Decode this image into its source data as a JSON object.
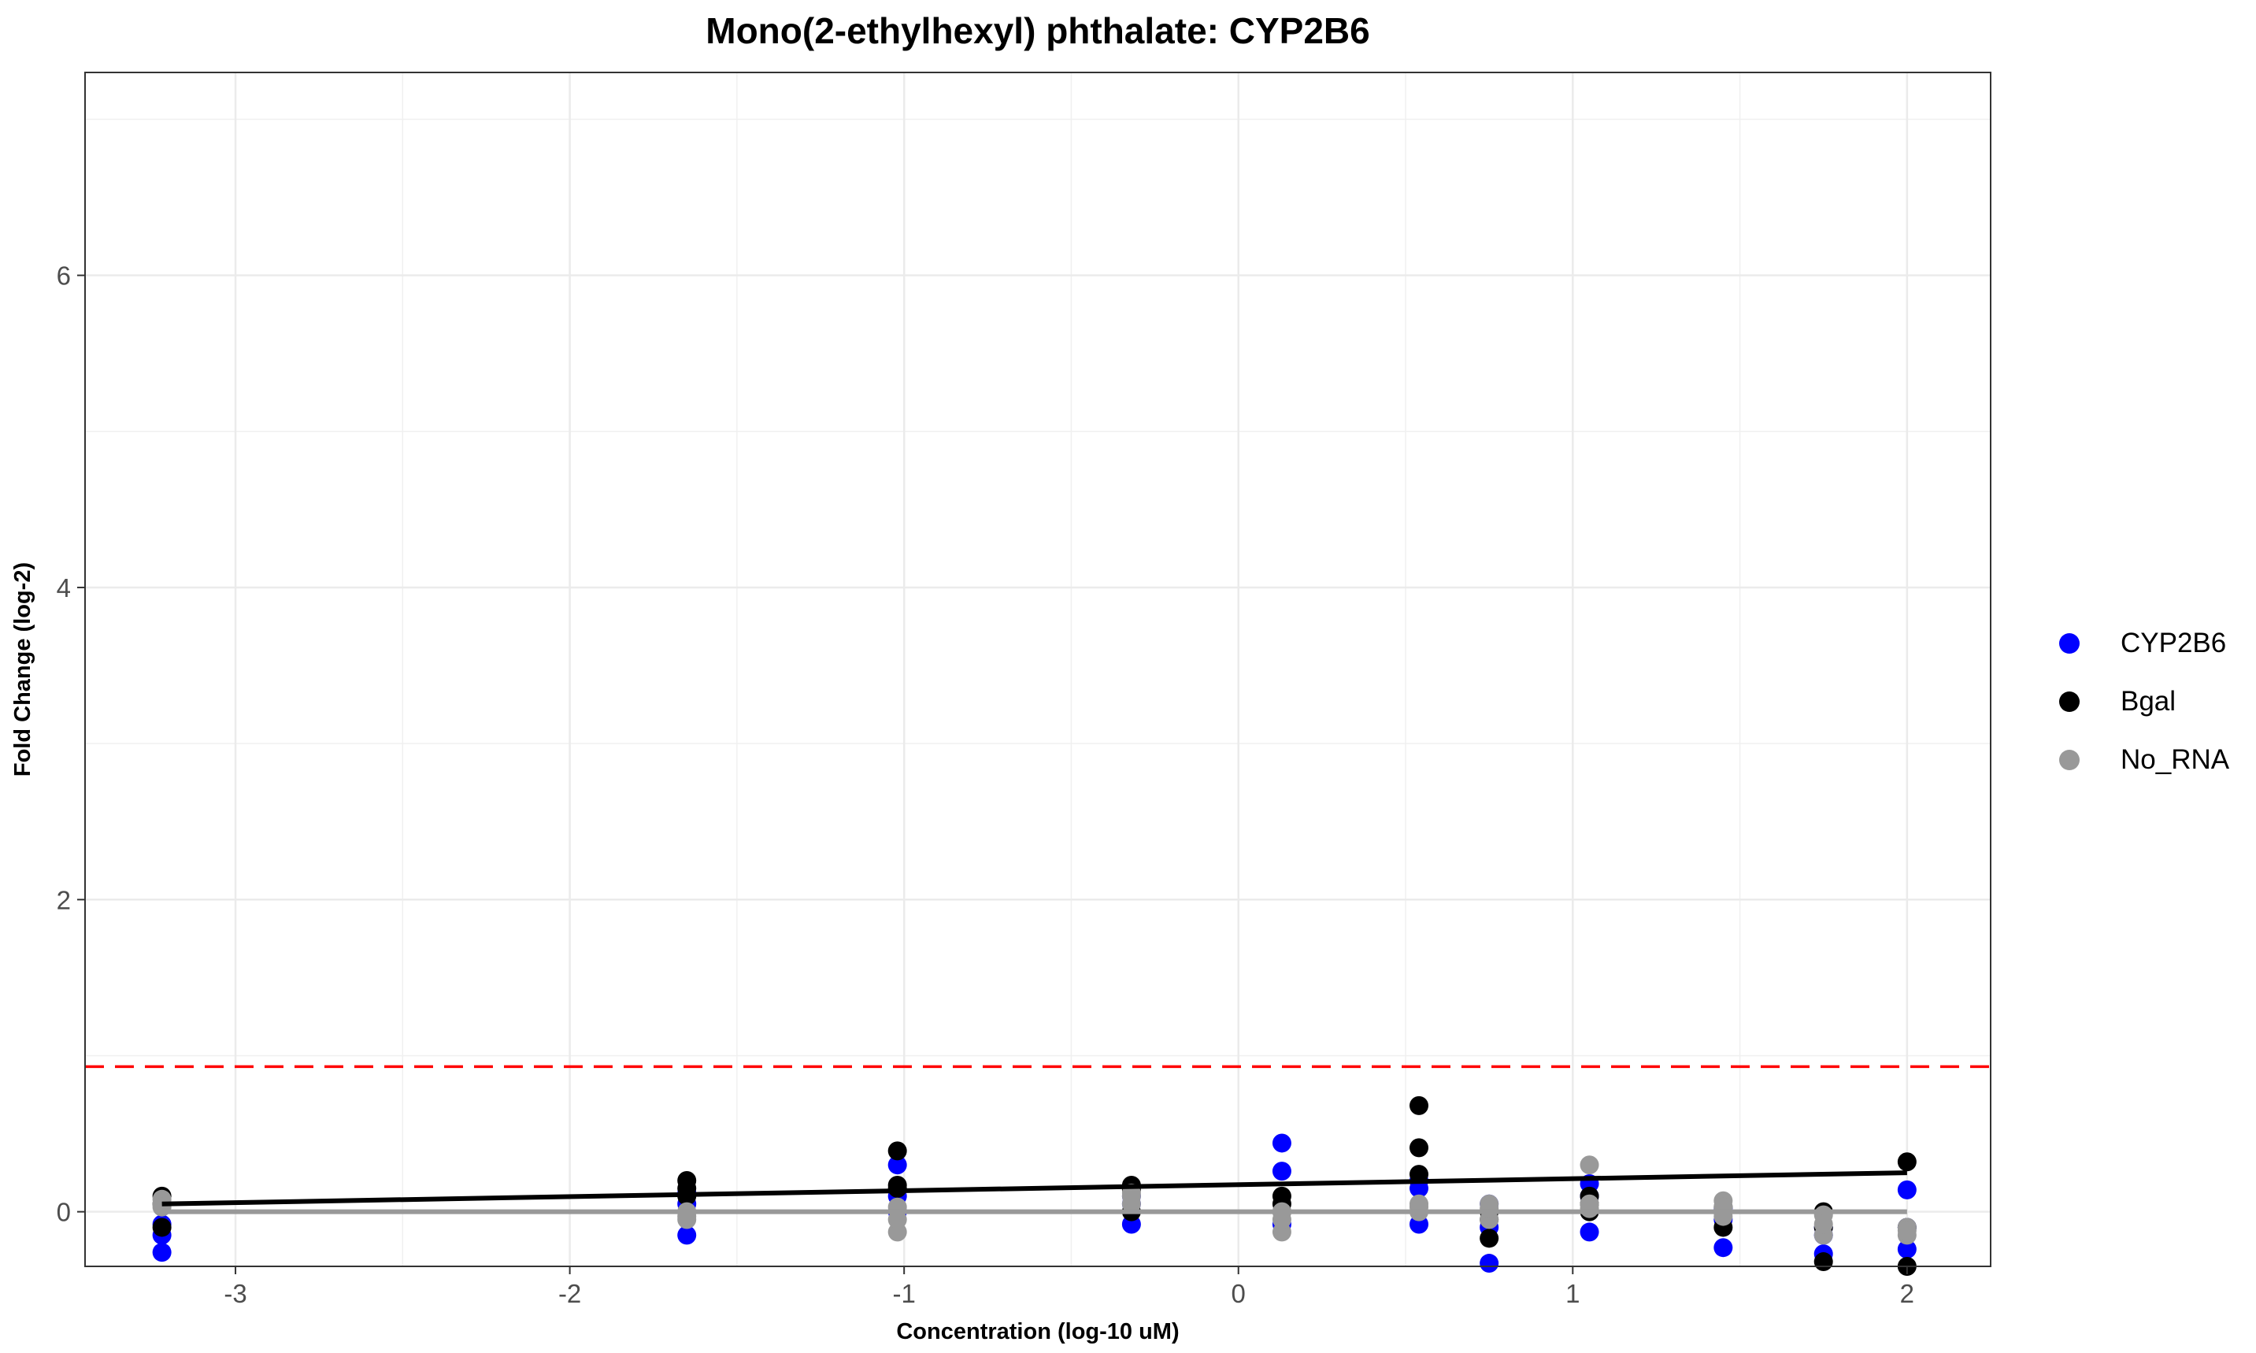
{
  "chart_data": {
    "type": "scatter",
    "title": "Mono(2-ethylhexyl) phthalate: CYP2B6",
    "xlabel": "Concentration (log-10 uM)",
    "ylabel": "Fold Change (log-2)",
    "xlim": [
      -3.45,
      2.25
    ],
    "ylim": [
      -0.35,
      7.3
    ],
    "x_ticks": [
      -3,
      -2,
      -1,
      0,
      1,
      2
    ],
    "y_ticks": [
      0,
      2,
      4,
      6
    ],
    "x_tick_labels": [
      "-3",
      "-2",
      "-1",
      "0",
      "1",
      "2"
    ],
    "y_tick_labels": [
      "0",
      "2",
      "4",
      "6"
    ],
    "grid": true,
    "legend_position": "right",
    "threshold_line": {
      "y": 0.93,
      "color": "#ff0000",
      "style": "dashed"
    },
    "series": [
      {
        "name": "CYP2B6",
        "color": "#0000ff",
        "points": [
          [
            -3.22,
            -0.15
          ],
          [
            -3.22,
            -0.26
          ],
          [
            -3.22,
            -0.08
          ],
          [
            -1.65,
            0.05
          ],
          [
            -1.65,
            -0.15
          ],
          [
            -1.65,
            0.12
          ],
          [
            -1.02,
            0.3
          ],
          [
            -1.02,
            0.1
          ],
          [
            -1.02,
            0.0
          ],
          [
            -0.32,
            -0.08
          ],
          [
            -0.32,
            0.05
          ],
          [
            -0.32,
            0.1
          ],
          [
            0.13,
            0.44
          ],
          [
            0.13,
            0.26
          ],
          [
            0.13,
            -0.08
          ],
          [
            0.54,
            0.15
          ],
          [
            0.54,
            -0.08
          ],
          [
            0.54,
            0.2
          ],
          [
            0.75,
            0.05
          ],
          [
            0.75,
            -0.1
          ],
          [
            0.75,
            -0.33
          ],
          [
            1.05,
            0.18
          ],
          [
            1.05,
            -0.13
          ],
          [
            1.05,
            0.1
          ],
          [
            1.45,
            -0.23
          ],
          [
            1.45,
            0.02
          ],
          [
            1.45,
            -0.05
          ],
          [
            1.75,
            -0.27
          ],
          [
            1.75,
            -0.1
          ],
          [
            1.75,
            -0.15
          ],
          [
            2.0,
            0.14
          ],
          [
            2.0,
            -0.24
          ],
          [
            2.0,
            -0.1
          ]
        ]
      },
      {
        "name": "Bgal",
        "color": "#000000",
        "fit": [
          [
            -3.22,
            0.05
          ],
          [
            2.0,
            0.25
          ]
        ],
        "points": [
          [
            -3.22,
            0.1
          ],
          [
            -3.22,
            -0.1
          ],
          [
            -3.22,
            0.05
          ],
          [
            -1.65,
            0.2
          ],
          [
            -1.65,
            0.15
          ],
          [
            -1.65,
            0.1
          ],
          [
            -1.02,
            0.39
          ],
          [
            -1.02,
            0.17
          ],
          [
            -1.02,
            0.15
          ],
          [
            -0.32,
            0.17
          ],
          [
            -0.32,
            0.14
          ],
          [
            -0.32,
            0.0
          ],
          [
            0.13,
            0.1
          ],
          [
            0.13,
            0.0
          ],
          [
            0.13,
            0.05
          ],
          [
            0.54,
            0.68
          ],
          [
            0.54,
            0.41
          ],
          [
            0.54,
            0.24
          ],
          [
            0.75,
            -0.17
          ],
          [
            0.75,
            -0.05
          ],
          [
            0.75,
            0.0
          ],
          [
            1.05,
            0.1
          ],
          [
            1.05,
            0.0
          ],
          [
            1.05,
            0.05
          ],
          [
            1.45,
            -0.1
          ],
          [
            1.45,
            0.0
          ],
          [
            1.45,
            0.03
          ],
          [
            1.75,
            -0.32
          ],
          [
            1.75,
            -0.1
          ],
          [
            1.75,
            0.0
          ],
          [
            2.0,
            0.32
          ],
          [
            2.0,
            -0.35
          ],
          [
            2.0,
            -0.1
          ]
        ]
      },
      {
        "name": "No_RNA",
        "color": "#999999",
        "fit": [
          [
            -3.22,
            0.0
          ],
          [
            2.0,
            0.0
          ]
        ],
        "points": [
          [
            -3.22,
            0.05
          ],
          [
            -3.22,
            0.08
          ],
          [
            -3.22,
            0.03
          ],
          [
            -1.65,
            -0.05
          ],
          [
            -1.65,
            0.0
          ],
          [
            -1.65,
            -0.03
          ],
          [
            -1.02,
            -0.13
          ],
          [
            -1.02,
            0.03
          ],
          [
            -1.02,
            -0.05
          ],
          [
            -0.32,
            0.05
          ],
          [
            -0.32,
            0.12
          ],
          [
            -0.32,
            0.1
          ],
          [
            0.13,
            -0.13
          ],
          [
            0.13,
            0.0
          ],
          [
            0.13,
            -0.05
          ],
          [
            0.54,
            0.05
          ],
          [
            0.54,
            0.0
          ],
          [
            0.54,
            0.03
          ],
          [
            0.75,
            0.05
          ],
          [
            0.75,
            -0.05
          ],
          [
            0.75,
            0.02
          ],
          [
            1.05,
            0.3
          ],
          [
            1.05,
            0.02
          ],
          [
            1.05,
            0.05
          ],
          [
            1.45,
            0.07
          ],
          [
            1.45,
            0.03
          ],
          [
            1.45,
            -0.03
          ],
          [
            1.75,
            -0.15
          ],
          [
            1.75,
            -0.02
          ],
          [
            1.75,
            -0.08
          ],
          [
            2.0,
            -0.1
          ],
          [
            2.0,
            -0.15
          ],
          [
            2.0,
            -0.12
          ]
        ]
      }
    ]
  }
}
